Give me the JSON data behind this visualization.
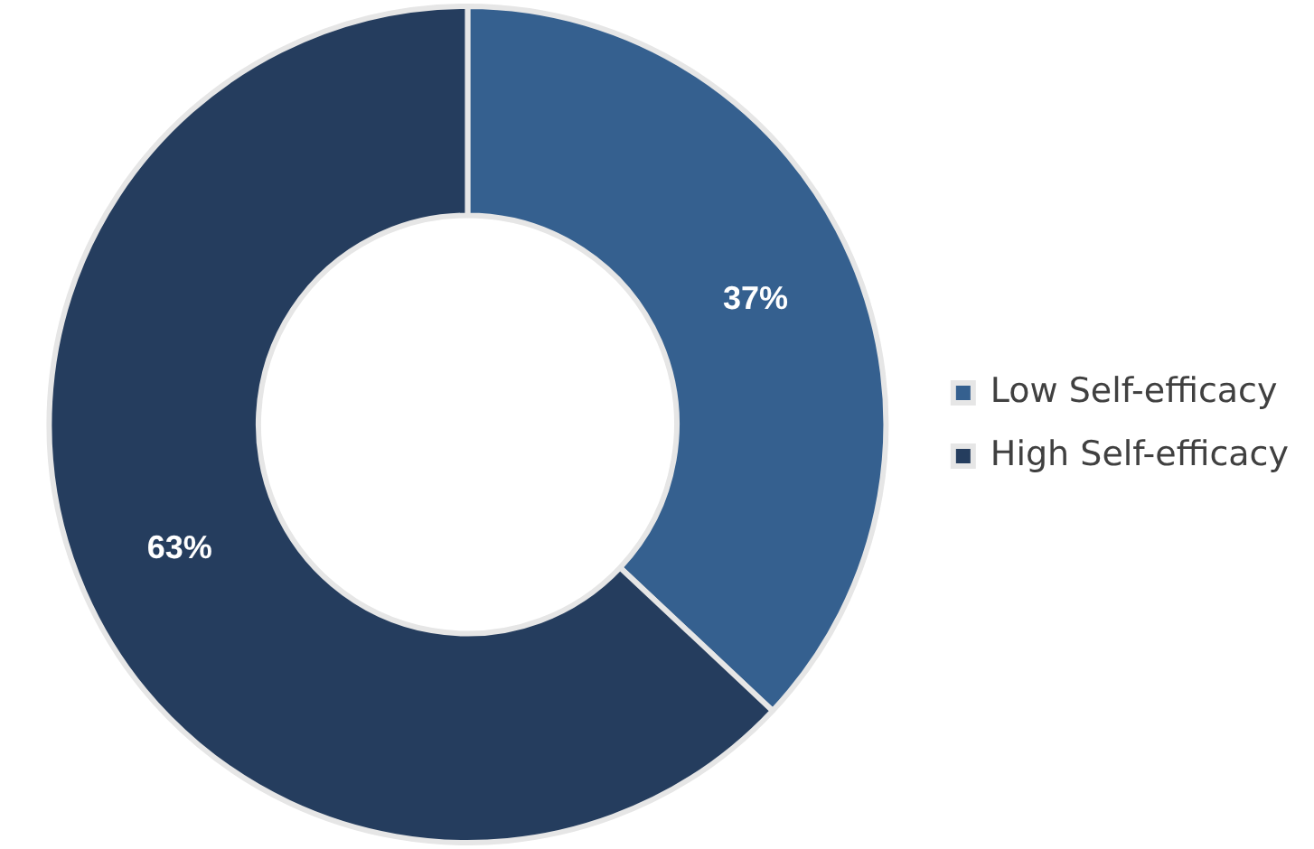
{
  "chart_data": {
    "type": "donut",
    "categories": [
      "Low Self-efficacy",
      "High Self-efficacy"
    ],
    "values": [
      37,
      63
    ],
    "colors": [
      "#35608f",
      "#253d5e"
    ],
    "value_labels": [
      "37%",
      "63%"
    ],
    "legend": "right"
  }
}
